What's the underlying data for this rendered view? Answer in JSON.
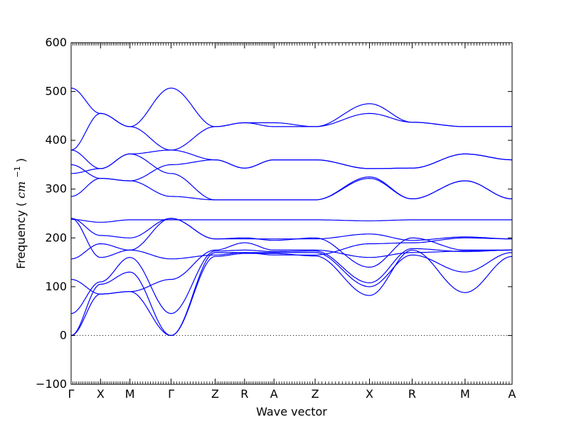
{
  "chart_data": {
    "type": "line",
    "xlabel": "Wave vector",
    "ylabel": "Frequency",
    "ylabel_unit": "cm",
    "ylabel_unit_exp": "−1",
    "ylim": [
      -100,
      600
    ],
    "yticks": [
      -100,
      0,
      100,
      200,
      300,
      400,
      500,
      600
    ],
    "xlim": [
      0,
      15
    ],
    "xticks": [
      {
        "x": 0,
        "label": "Γ"
      },
      {
        "x": 1,
        "label": "X"
      },
      {
        "x": 2,
        "label": "M"
      },
      {
        "x": 3.4,
        "label": "Γ"
      },
      {
        "x": 4.9,
        "label": "Z"
      },
      {
        "x": 5.9,
        "label": "R"
      },
      {
        "x": 6.9,
        "label": "A"
      },
      {
        "x": 8.3,
        "label": "Z"
      },
      {
        "x": 10.15,
        "label": "X"
      },
      {
        "x": 11.6,
        "label": "R"
      },
      {
        "x": 13.4,
        "label": "M"
      },
      {
        "x": 15,
        "label": "A"
      }
    ],
    "zero_line": {
      "y": 0,
      "style": "dotted"
    },
    "line_color": "#0000ff",
    "series": [
      {
        "x": [
          0,
          1,
          2,
          3.4,
          4.9,
          5.9,
          6.9,
          8.3,
          10.15,
          11.6,
          13.4,
          15
        ],
        "values": [
          0,
          85,
          90,
          0,
          162,
          168,
          168,
          163,
          82,
          175,
          88,
          162
        ]
      },
      {
        "x": [
          0,
          1,
          2,
          3.4,
          4.9,
          5.9,
          6.9,
          8.3,
          10.15,
          11.6,
          13.4,
          15
        ],
        "values": [
          0,
          105,
          130,
          0,
          170,
          170,
          170,
          170,
          100,
          165,
          130,
          170
        ]
      },
      {
        "x": [
          0,
          1,
          2,
          3.4,
          4.9,
          5.9,
          6.9,
          8.3,
          10.15,
          11.6,
          13.4,
          15
        ],
        "values": [
          45,
          110,
          160,
          45,
          173,
          175,
          172,
          173,
          108,
          178,
          172,
          175
        ]
      },
      {
        "x": [
          0,
          1,
          2,
          3.4,
          4.9,
          5.9,
          6.9,
          8.3,
          10.15,
          11.6,
          13.4,
          15
        ],
        "values": [
          115,
          85,
          90,
          115,
          175,
          190,
          175,
          175,
          160,
          170,
          173,
          175
        ]
      },
      {
        "x": [
          0,
          1,
          2,
          3.4,
          4.9,
          5.9,
          6.9,
          8.3,
          10.15,
          11.6,
          13.4,
          15
        ],
        "values": [
          157,
          188,
          175,
          157,
          165,
          170,
          165,
          165,
          188,
          190,
          200,
          198
        ]
      },
      {
        "x": [
          0,
          1,
          2,
          3.4,
          4.9,
          5.9,
          6.9,
          8.3,
          10.15,
          11.6,
          13.4,
          15
        ],
        "values": [
          240,
          160,
          175,
          240,
          198,
          198,
          198,
          198,
          208,
          195,
          202,
          198
        ]
      },
      {
        "x": [
          0,
          1,
          2,
          3.4,
          4.9,
          5.9,
          6.9,
          8.3,
          10.15,
          11.6,
          13.4,
          15
        ],
        "values": [
          240,
          205,
          200,
          240,
          198,
          200,
          195,
          200,
          140,
          200,
          175,
          175
        ]
      },
      {
        "x": [
          0,
          1,
          2,
          3.4,
          4.9,
          5.9,
          6.9,
          8.3,
          10.15,
          11.6,
          13.4,
          15
        ],
        "values": [
          238,
          232,
          237,
          237,
          237,
          237,
          237,
          237,
          235,
          237,
          237,
          237
        ]
      },
      {
        "x": [
          0,
          1,
          2,
          3.4,
          4.9,
          5.9,
          6.9,
          8.3,
          10.15,
          11.6,
          13.4,
          15
        ],
        "values": [
          285,
          322,
          317,
          285,
          278,
          278,
          278,
          278,
          322,
          280,
          317,
          280
        ]
      },
      {
        "x": [
          0,
          1,
          2,
          3.4,
          4.9,
          5.9,
          6.9,
          8.3,
          10.15,
          11.6,
          13.4,
          15
        ],
        "values": [
          332,
          342,
          372,
          332,
          278,
          278,
          278,
          278,
          325,
          280,
          317,
          280
        ]
      },
      {
        "x": [
          0,
          1,
          2,
          3.4,
          4.9,
          5.9,
          6.9,
          8.3,
          10.15,
          11.6,
          13.4,
          15
        ],
        "values": [
          350,
          322,
          317,
          350,
          360,
          343,
          360,
          360,
          342,
          343,
          372,
          360
        ]
      },
      {
        "x": [
          0,
          1,
          2,
          3.4,
          4.9,
          5.9,
          6.9,
          8.3,
          10.15,
          11.6,
          13.4,
          15
        ],
        "values": [
          380,
          342,
          372,
          380,
          360,
          343,
          360,
          360,
          342,
          343,
          372,
          360
        ]
      },
      {
        "x": [
          0,
          1,
          2,
          3.4,
          4.9,
          5.9,
          6.9,
          8.3,
          10.15,
          11.6,
          13.4,
          15
        ],
        "values": [
          380,
          455,
          428,
          380,
          428,
          436,
          428,
          428,
          455,
          437,
          428,
          428
        ]
      },
      {
        "x": [
          0,
          1,
          2,
          3.4,
          4.9,
          5.9,
          6.9,
          8.3,
          10.15,
          11.6,
          13.4,
          15
        ],
        "values": [
          507,
          455,
          428,
          507,
          428,
          436,
          436,
          428,
          475,
          437,
          428,
          428
        ]
      }
    ]
  }
}
